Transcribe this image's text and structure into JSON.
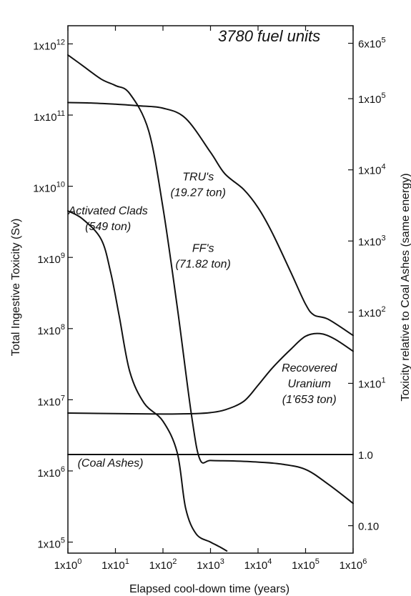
{
  "chart_data": {
    "type": "line",
    "title": "3780 fuel units",
    "xlabel": "Elapsed cool-down time (years)",
    "ylabel": "Total Ingestive Toxicity (Sv)",
    "y2label": "Toxicity relative to Coal Ashes (same energy)",
    "x_scale": "log",
    "y_scale": "log",
    "xlim": [
      1,
      1000000
    ],
    "ylim": [
      70000,
      1800000000000
    ],
    "grid": false,
    "x_ticks": [
      {
        "value": 1,
        "label": "1x10",
        "exp": "0"
      },
      {
        "value": 10,
        "label": "1x10",
        "exp": "1"
      },
      {
        "value": 100,
        "label": "1x10",
        "exp": "2"
      },
      {
        "value": 1000,
        "label": "1x10",
        "exp": "3"
      },
      {
        "value": 10000,
        "label": "1x10",
        "exp": "4"
      },
      {
        "value": 100000,
        "label": "1x10",
        "exp": "5"
      },
      {
        "value": 1000000,
        "label": "1x10",
        "exp": "6"
      }
    ],
    "y_ticks": [
      {
        "value": 100000,
        "label": "1x10",
        "exp": "5"
      },
      {
        "value": 1000000,
        "label": "1x10",
        "exp": "6"
      },
      {
        "value": 10000000,
        "label": "1x10",
        "exp": "7"
      },
      {
        "value": 100000000,
        "label": "1x10",
        "exp": "8"
      },
      {
        "value": 1000000000,
        "label": "1x10",
        "exp": "9"
      },
      {
        "value": 10000000000,
        "label": "1x10",
        "exp": "10"
      },
      {
        "value": 100000000000,
        "label": "1x10",
        "exp": "11"
      },
      {
        "value": 1000000000000,
        "label": "1x10",
        "exp": "12"
      }
    ],
    "y2_ticks": [
      {
        "value": 0.1,
        "label": "0.10",
        "exp": ""
      },
      {
        "value": 1,
        "label": "1.0",
        "exp": ""
      },
      {
        "value": 10,
        "label": "1x10",
        "exp": "1"
      },
      {
        "value": 100,
        "label": "1x10",
        "exp": "2"
      },
      {
        "value": 1000,
        "label": "1x10",
        "exp": "3"
      },
      {
        "value": 10000,
        "label": "1x10",
        "exp": "4"
      },
      {
        "value": 100000,
        "label": "1x10",
        "exp": "5"
      },
      {
        "value": 600000,
        "label": "6x10",
        "exp": "5"
      }
    ],
    "y2_reference": {
      "y2_value": 1,
      "y_value": 1700000
    },
    "series": [
      {
        "name": "TRU's",
        "label_lines": [
          "TRU's",
          "(19.27 ton)"
        ],
        "label_anchor": {
          "x": 550,
          "y": 12000000000
        },
        "points": [
          [
            1,
            150000000000.0
          ],
          [
            3,
            148000000000.0
          ],
          [
            10,
            142000000000.0
          ],
          [
            30,
            135000000000.0
          ],
          [
            100,
            125000000000.0
          ],
          [
            300,
            90000000000.0
          ],
          [
            1000,
            30000000000.0
          ],
          [
            2000,
            15000000000.0
          ],
          [
            5000,
            9000000000.0
          ],
          [
            10000,
            5000000000.0
          ],
          [
            20000,
            2200000000.0
          ],
          [
            50000,
            600000000.0
          ],
          [
            100000,
            220000000.0
          ],
          [
            150000,
            155000000.0
          ],
          [
            300000,
            135000000.0
          ],
          [
            1000000,
            80000000.0
          ]
        ]
      },
      {
        "name": "FF's",
        "label_lines": [
          "FF's",
          "(71.82 ton)"
        ],
        "label_anchor": {
          "x": 700,
          "y": 1200000000
        },
        "points": [
          [
            1,
            700000000000.0
          ],
          [
            2,
            500000000000.0
          ],
          [
            5,
            320000000000.0
          ],
          [
            10,
            260000000000.0
          ],
          [
            20,
            200000000000.0
          ],
          [
            50,
            60000000000.0
          ],
          [
            100,
            5000000000.0
          ],
          [
            200,
            200000000.0
          ],
          [
            400,
            6000000.0
          ],
          [
            600,
            1450000.0
          ],
          [
            1000,
            1400000.0
          ],
          [
            3000,
            1380000.0
          ],
          [
            10000,
            1330000.0
          ],
          [
            30000,
            1250000.0
          ],
          [
            100000,
            1050000.0
          ],
          [
            300000,
            650000.0
          ],
          [
            1000000,
            350000.0
          ]
        ]
      },
      {
        "name": "Activated Clads",
        "label_lines": [
          "Activated Clads",
          "(549 ton)"
        ],
        "label_anchor": {
          "x": 7,
          "y": 4000000000
        },
        "points": [
          [
            1,
            4500000000.0
          ],
          [
            2,
            3500000000.0
          ],
          [
            5,
            1800000000.0
          ],
          [
            8,
            600000000.0
          ],
          [
            12,
            150000000.0
          ],
          [
            20,
            25000000.0
          ],
          [
            40,
            9000000.0
          ],
          [
            100,
            5000000.0
          ],
          [
            200,
            1800000.0
          ],
          [
            300,
            300000.0
          ],
          [
            500,
            130000.0
          ],
          [
            1000,
            100000.0
          ],
          [
            1600,
            85000.0
          ],
          [
            2200,
            75000.0
          ]
        ]
      },
      {
        "name": "Recovered Uranium",
        "label_lines": [
          "Recovered",
          "Uranium",
          "(1'653 ton)"
        ],
        "label_anchor": {
          "x": 120000,
          "y": 25000000
        },
        "points": [
          [
            1,
            6500000.0
          ],
          [
            10,
            6400000.0
          ],
          [
            100,
            6300000.0
          ],
          [
            500,
            6400000.0
          ],
          [
            1000,
            6600000.0
          ],
          [
            2000,
            7200000.0
          ],
          [
            5000,
            9500000.0
          ],
          [
            10000,
            16000000.0
          ],
          [
            20000,
            28000000.0
          ],
          [
            50000,
            52000000.0
          ],
          [
            100000,
            78000000.0
          ],
          [
            200000,
            85000000.0
          ],
          [
            400000,
            72000000.0
          ],
          [
            1000000,
            48000000.0
          ]
        ]
      },
      {
        "name": "(Coal Ashes)",
        "label_lines": [
          "(Coal Ashes)"
        ],
        "label_anchor": {
          "x": 1.6,
          "y": 1150000
        },
        "points": [
          [
            1,
            1700000.0
          ],
          [
            1000000,
            1700000.0
          ]
        ]
      }
    ]
  }
}
